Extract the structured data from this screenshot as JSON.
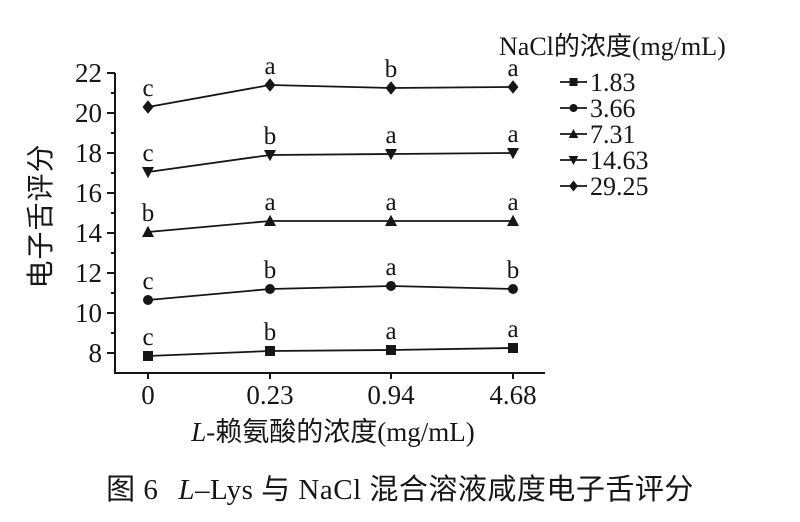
{
  "chart_data": {
    "type": "line",
    "categories": [
      "0",
      "0.23",
      "0.94",
      "4.68"
    ],
    "xlabel_parts": [
      "L",
      "-赖氨酸的浓度(mg/mL)"
    ],
    "ylabel": "电子舌评分",
    "ylim": [
      7,
      22
    ],
    "yticks_major": [
      8,
      10,
      12,
      14,
      16,
      18,
      20,
      22
    ],
    "yticks_minor": [
      9,
      11,
      13,
      15,
      17,
      19,
      21
    ],
    "grid": false,
    "legend": {
      "title": "NaCl的浓度(mg/mL)",
      "position": "top-right"
    },
    "series": [
      {
        "name": "1.83",
        "marker": "square",
        "values": [
          7.85,
          8.1,
          8.15,
          8.25
        ],
        "point_labels": [
          "c",
          "b",
          "a",
          "a"
        ]
      },
      {
        "name": "3.66",
        "marker": "circle",
        "values": [
          10.65,
          11.2,
          11.35,
          11.2
        ],
        "point_labels": [
          "c",
          "b",
          "a",
          "b"
        ]
      },
      {
        "name": "7.31",
        "marker": "triangle-up",
        "values": [
          14.05,
          14.6,
          14.6,
          14.6
        ],
        "point_labels": [
          "b",
          "a",
          "a",
          "a"
        ]
      },
      {
        "name": "14.63",
        "marker": "triangle-down",
        "values": [
          17.05,
          17.9,
          17.95,
          18.0
        ],
        "point_labels": [
          "c",
          "b",
          "a",
          "a"
        ]
      },
      {
        "name": "29.25",
        "marker": "diamond",
        "values": [
          20.3,
          21.4,
          21.25,
          21.3
        ],
        "point_labels": [
          "c",
          "a",
          "b",
          "a"
        ]
      }
    ],
    "line_color": "#161616",
    "background": "#ffffff"
  },
  "caption": {
    "figure_label": "图 6",
    "italic_letter": "L",
    "text": "–Lys 与 NaCl 混合溶液咸度电子舌评分"
  }
}
